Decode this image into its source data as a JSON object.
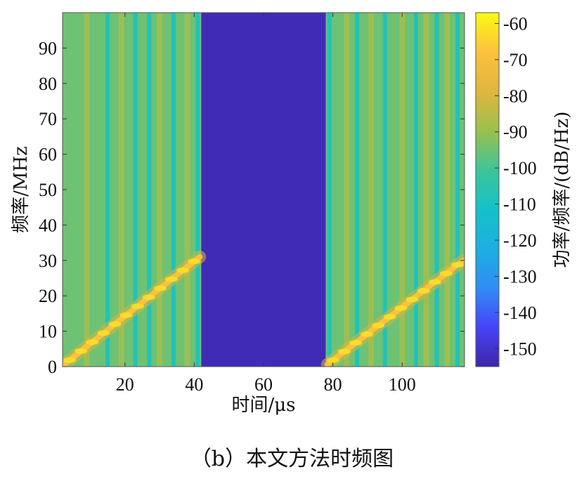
{
  "caption": "（b）本文方法时频图",
  "chart_data": {
    "type": "heatmap",
    "xlabel": "时间/μs",
    "ylabel": "频率/MHz",
    "colorbar_label": "功率/频率/(dB/Hz)",
    "xlim": [
      2,
      118
    ],
    "ylim": [
      0,
      100
    ],
    "x_ticks": [
      20,
      40,
      60,
      80,
      100
    ],
    "y_ticks": [
      0,
      10,
      20,
      30,
      40,
      50,
      60,
      70,
      80,
      90
    ],
    "color_range": [
      -155,
      -57
    ],
    "colorbar_ticks": [
      -60,
      -70,
      -80,
      -90,
      -100,
      -110,
      -120,
      -130,
      -140,
      -150
    ],
    "colormap": [
      "#3e26a8",
      "#4743f8",
      "#2f8df5",
      "#1dafe0",
      "#14c2c8",
      "#3ec49a",
      "#9bc04d",
      "#e0b640",
      "#fdc13c",
      "#f9fb15"
    ],
    "background_power": -95,
    "gap_power": -153,
    "segments": [
      {
        "t_start": 2,
        "t_end": 42,
        "chirp_f_start": 0,
        "chirp_f_end": 31
      },
      {
        "t_start": 78,
        "t_end": 118,
        "chirp_f_start": 0,
        "chirp_f_end": 30
      }
    ],
    "low_power_stripes_t": [
      15,
      23,
      27,
      34,
      41,
      79,
      87,
      95,
      104,
      110,
      116
    ],
    "high_power_stripes_t": [
      9,
      19,
      30,
      38,
      84,
      91,
      100,
      107,
      113
    ]
  }
}
